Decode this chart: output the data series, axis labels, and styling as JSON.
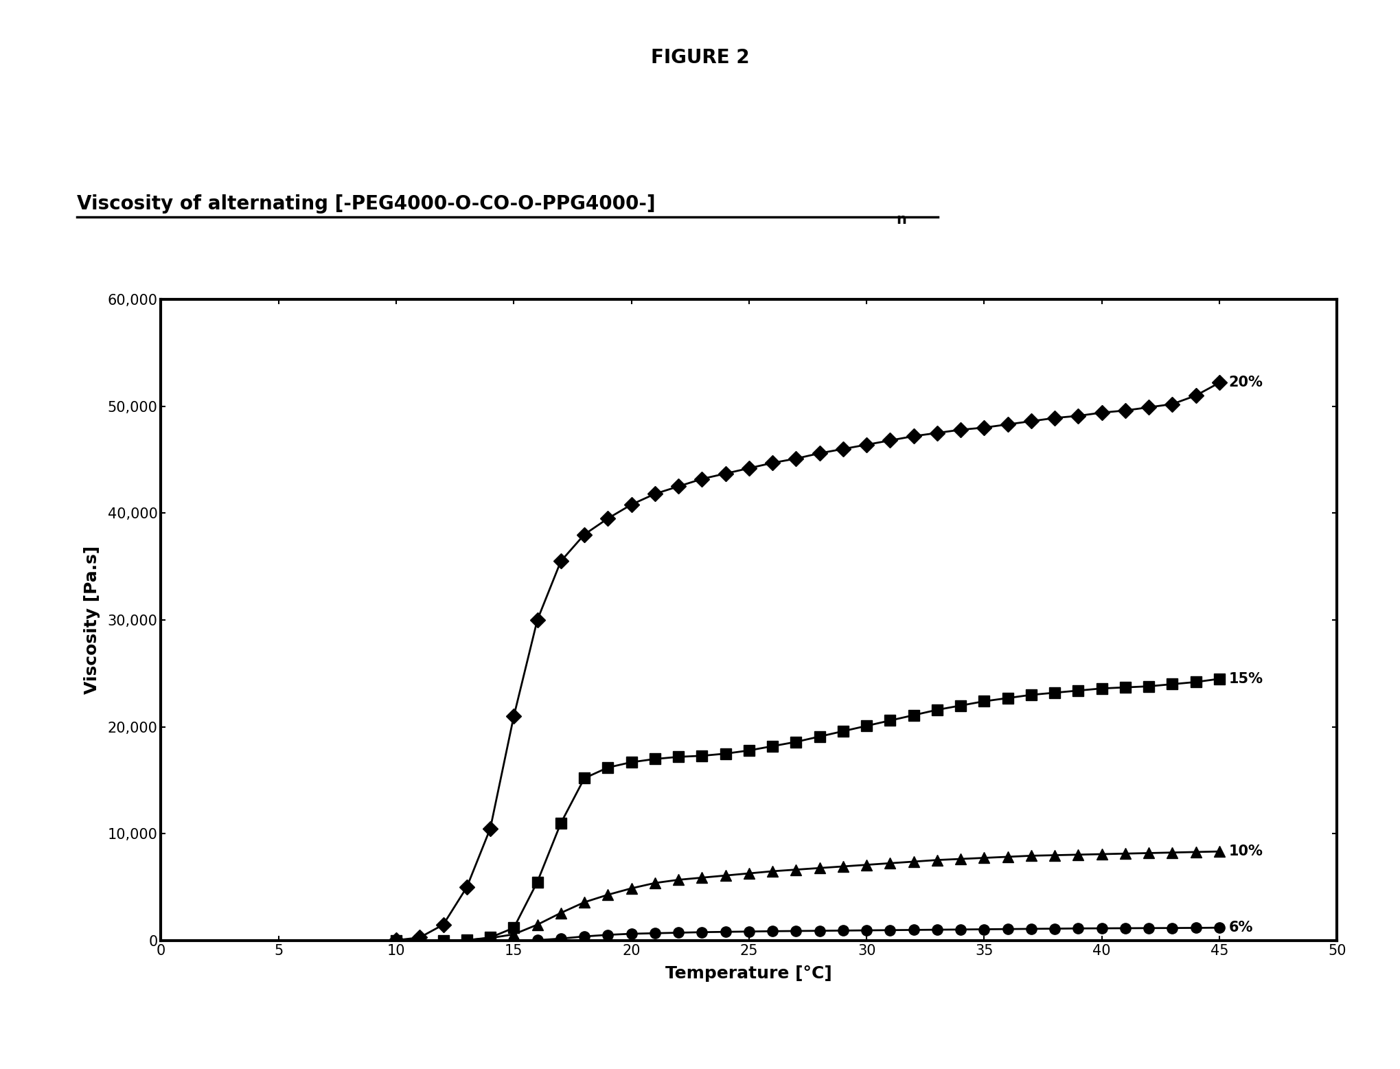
{
  "figure_title": "FIGURE 2",
  "chart_title": "Viscosity of alternating [-PEG4000-O-CO-O-PPG4000-]",
  "chart_title_subscript": "n",
  "ylabel": "Viscosity [Pa.s]",
  "xlabel": "Temperature [°C]",
  "xlim": [
    0,
    50
  ],
  "ylim": [
    0,
    60000
  ],
  "xticks": [
    0,
    5,
    10,
    15,
    20,
    25,
    30,
    35,
    40,
    45,
    50
  ],
  "yticks": [
    0,
    10000,
    20000,
    30000,
    40000,
    50000,
    60000
  ],
  "ytick_labels": [
    "0",
    "10,000",
    "20,000",
    "30,000",
    "40,000",
    "50,000",
    "60,000"
  ],
  "background_color": "#ffffff",
  "series": {
    "20pct": {
      "label": "20%",
      "marker": "D",
      "markersize": 11,
      "x": [
        10,
        11,
        12,
        13,
        14,
        15,
        16,
        17,
        18,
        19,
        20,
        21,
        22,
        23,
        24,
        25,
        26,
        27,
        28,
        29,
        30,
        31,
        32,
        33,
        34,
        35,
        36,
        37,
        38,
        39,
        40,
        41,
        42,
        43,
        44,
        45
      ],
      "y": [
        50,
        300,
        1500,
        5000,
        10500,
        21000,
        30000,
        35500,
        38000,
        39500,
        40800,
        41800,
        42500,
        43200,
        43700,
        44200,
        44700,
        45100,
        45600,
        46000,
        46400,
        46800,
        47200,
        47500,
        47800,
        48000,
        48300,
        48600,
        48900,
        49100,
        49400,
        49600,
        49900,
        50200,
        51000,
        52200
      ]
    },
    "15pct": {
      "label": "15%",
      "marker": "s",
      "markersize": 11,
      "x": [
        10,
        11,
        12,
        13,
        14,
        15,
        16,
        17,
        18,
        19,
        20,
        21,
        22,
        23,
        24,
        25,
        26,
        27,
        28,
        29,
        30,
        31,
        32,
        33,
        34,
        35,
        36,
        37,
        38,
        39,
        40,
        41,
        42,
        43,
        44,
        45
      ],
      "y": [
        0,
        0,
        0,
        50,
        300,
        1200,
        5500,
        11000,
        15200,
        16200,
        16700,
        17000,
        17200,
        17300,
        17500,
        17800,
        18200,
        18600,
        19100,
        19600,
        20100,
        20600,
        21100,
        21600,
        22000,
        22400,
        22700,
        23000,
        23200,
        23400,
        23600,
        23700,
        23800,
        24000,
        24200,
        24500
      ]
    },
    "10pct": {
      "label": "10%",
      "marker": "^",
      "markersize": 11,
      "x": [
        10,
        11,
        12,
        13,
        14,
        15,
        16,
        17,
        18,
        19,
        20,
        21,
        22,
        23,
        24,
        25,
        26,
        27,
        28,
        29,
        30,
        31,
        32,
        33,
        34,
        35,
        36,
        37,
        38,
        39,
        40,
        41,
        42,
        43,
        44,
        45
      ],
      "y": [
        0,
        0,
        0,
        50,
        250,
        600,
        1500,
        2600,
        3600,
        4300,
        4900,
        5400,
        5700,
        5900,
        6100,
        6300,
        6500,
        6650,
        6800,
        6950,
        7100,
        7250,
        7400,
        7550,
        7650,
        7750,
        7850,
        7950,
        8000,
        8050,
        8100,
        8150,
        8200,
        8250,
        8300,
        8350
      ]
    },
    "6pct": {
      "label": "6%",
      "marker": "o",
      "markersize": 11,
      "x": [
        10,
        11,
        12,
        13,
        14,
        15,
        16,
        17,
        18,
        19,
        20,
        21,
        22,
        23,
        24,
        25,
        26,
        27,
        28,
        29,
        30,
        31,
        32,
        33,
        34,
        35,
        36,
        37,
        38,
        39,
        40,
        41,
        42,
        43,
        44,
        45
      ],
      "y": [
        0,
        0,
        0,
        0,
        0,
        0,
        50,
        200,
        400,
        550,
        650,
        700,
        750,
        800,
        830,
        860,
        890,
        910,
        930,
        950,
        970,
        990,
        1010,
        1030,
        1050,
        1070,
        1090,
        1110,
        1130,
        1150,
        1160,
        1170,
        1180,
        1190,
        1200,
        1220
      ]
    }
  }
}
